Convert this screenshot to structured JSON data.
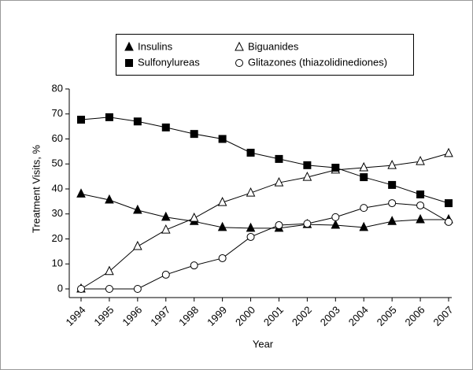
{
  "chart_data": {
    "type": "line",
    "xlabel": "Year",
    "ylabel": "Treatment Visits, %",
    "categories": [
      "1994",
      "1995",
      "1996",
      "1997",
      "1998",
      "1999",
      "2000",
      "2001",
      "2002",
      "2003",
      "2004",
      "2005",
      "2006",
      "2007"
    ],
    "ylim": [
      0,
      80
    ],
    "yticks": [
      0,
      10,
      20,
      30,
      40,
      50,
      60,
      70,
      80
    ],
    "series": [
      {
        "name": "Insulins",
        "color": "#000000",
        "marker": "triangle-filled",
        "values": [
          38,
          35.6,
          31.5,
          28.7,
          27,
          24.6,
          24.3,
          24.3,
          25.8,
          25.5,
          24.6,
          27,
          27.7,
          27.7
        ]
      },
      {
        "name": "Biguanides",
        "color": "#000000",
        "marker": "triangle-open",
        "values": [
          0,
          7,
          17,
          23.6,
          28.3,
          34.6,
          38.4,
          42.5,
          44.7,
          47.6,
          48.5,
          49.4,
          51,
          54.2
        ]
      },
      {
        "name": "Sulfonylureas",
        "color": "#000000",
        "marker": "square-filled",
        "values": [
          67.7,
          68.7,
          67,
          64.6,
          62,
          60,
          54.5,
          52,
          49.5,
          48.5,
          44.7,
          41.6,
          37.8,
          34.3
        ]
      },
      {
        "name": "Glitazones (thiazolidinediones)",
        "color": "#000000",
        "marker": "circle-open",
        "values": [
          0,
          0,
          0,
          5.7,
          9.4,
          12.3,
          20.8,
          25.5,
          26.1,
          28.7,
          32.4,
          34.3,
          33.4,
          26.8
        ]
      }
    ]
  }
}
